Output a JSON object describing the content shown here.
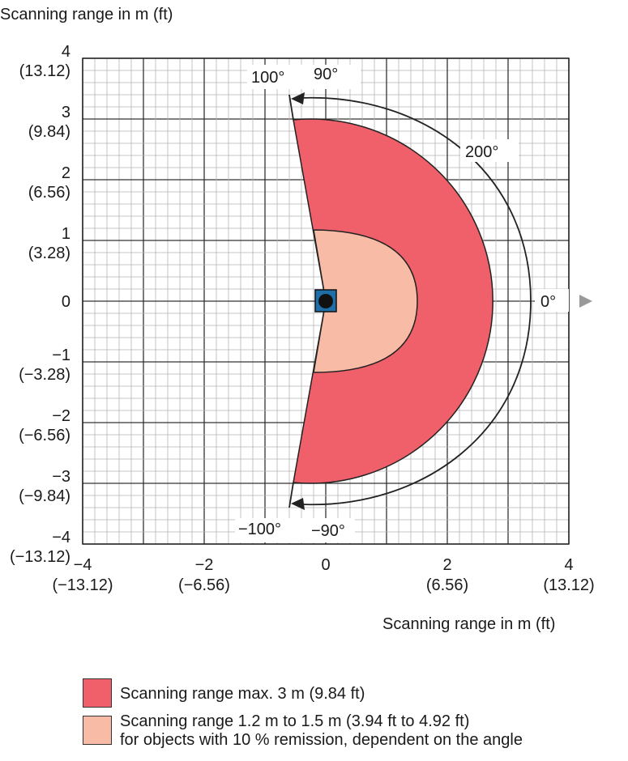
{
  "y_axis_title": "Scanning range in m (ft)",
  "x_axis_title": "Scanning range in m (ft)",
  "y_ticks": [
    {
      "m": "4",
      "ft": "(13.12)"
    },
    {
      "m": "3",
      "ft": "(9.84)"
    },
    {
      "m": "2",
      "ft": "(6.56)"
    },
    {
      "m": "1",
      "ft": "(3.28)"
    },
    {
      "m": "0",
      "ft": ""
    },
    {
      "m": "−1",
      "ft": "(−3.28)"
    },
    {
      "m": "−2",
      "ft": "(−6.56)"
    },
    {
      "m": "−3",
      "ft": "(−9.84)"
    },
    {
      "m": "−4",
      "ft": "(−13.12)"
    }
  ],
  "x_ticks": [
    {
      "m": "−4",
      "ft": "(−13.12)"
    },
    {
      "m": "−2",
      "ft": "(−6.56)"
    },
    {
      "m": "0",
      "ft": ""
    },
    {
      "m": "2",
      "ft": "(6.56)"
    },
    {
      "m": "4",
      "ft": "(13.12)"
    }
  ],
  "angles": {
    "top_100": "100°",
    "top_90": "90°",
    "total_200": "200°",
    "zero": "0°",
    "bottom_100": "−100°",
    "bottom_90": "−90°"
  },
  "legend": {
    "max_range": "Scanning range max. 3 m (9.84 ft)",
    "reduced_range_line1": "Scanning range 1.2 m to 1.5 m (3.94 ft to 4.92 ft)",
    "reduced_range_line2": "for objects with 10 % remission, dependent on the angle"
  },
  "colors": {
    "max_range": "#f0606a",
    "reduced_range": "#f8bba6",
    "sensor": "#1e6fa8"
  },
  "scan_data": {
    "field_of_view_deg": 200,
    "max_range_m": 3,
    "reduced_range_m": [
      1.2,
      1.5
    ],
    "axis_range_m": [
      -4,
      4
    ]
  }
}
